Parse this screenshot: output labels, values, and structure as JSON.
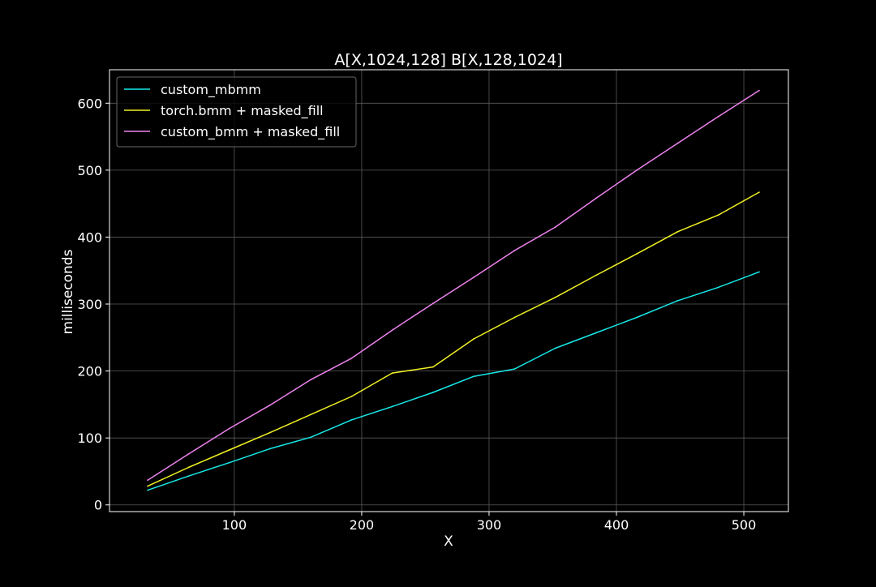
{
  "chart_data": {
    "type": "line",
    "title": "A[X,1024,128] B[X,128,1024]",
    "xlabel": "X",
    "ylabel": "milliseconds",
    "xlim": [
      2,
      535
    ],
    "ylim": [
      -10,
      650
    ],
    "xticks": [
      100,
      200,
      300,
      400,
      500
    ],
    "yticks": [
      0,
      100,
      200,
      300,
      400,
      500,
      600
    ],
    "grid": true,
    "legend_position": "upper-left",
    "x": [
      32,
      64,
      96,
      128,
      160,
      192,
      224,
      256,
      288,
      320,
      352,
      384,
      416,
      448,
      480,
      512
    ],
    "series": [
      {
        "name": "custom_mbmm",
        "color": "#17e8e8",
        "values": [
          22,
          43,
          63,
          84,
          101,
          127,
          147,
          168,
          192,
          203,
          234,
          257,
          280,
          305,
          325,
          348
        ]
      },
      {
        "name": "torch.bmm + masked_fill",
        "color": "#f0f024",
        "values": [
          28,
          56,
          82,
          108,
          135,
          162,
          197,
          206,
          248,
          280,
          310,
          343,
          375,
          408,
          433,
          467
        ]
      },
      {
        "name": "custom_bmm + masked_fill",
        "color": "#ee82ee",
        "values": [
          37,
          76,
          114,
          149,
          187,
          219,
          261,
          301,
          340,
          380,
          415,
          458,
          500,
          540,
          580,
          619
        ]
      }
    ]
  }
}
